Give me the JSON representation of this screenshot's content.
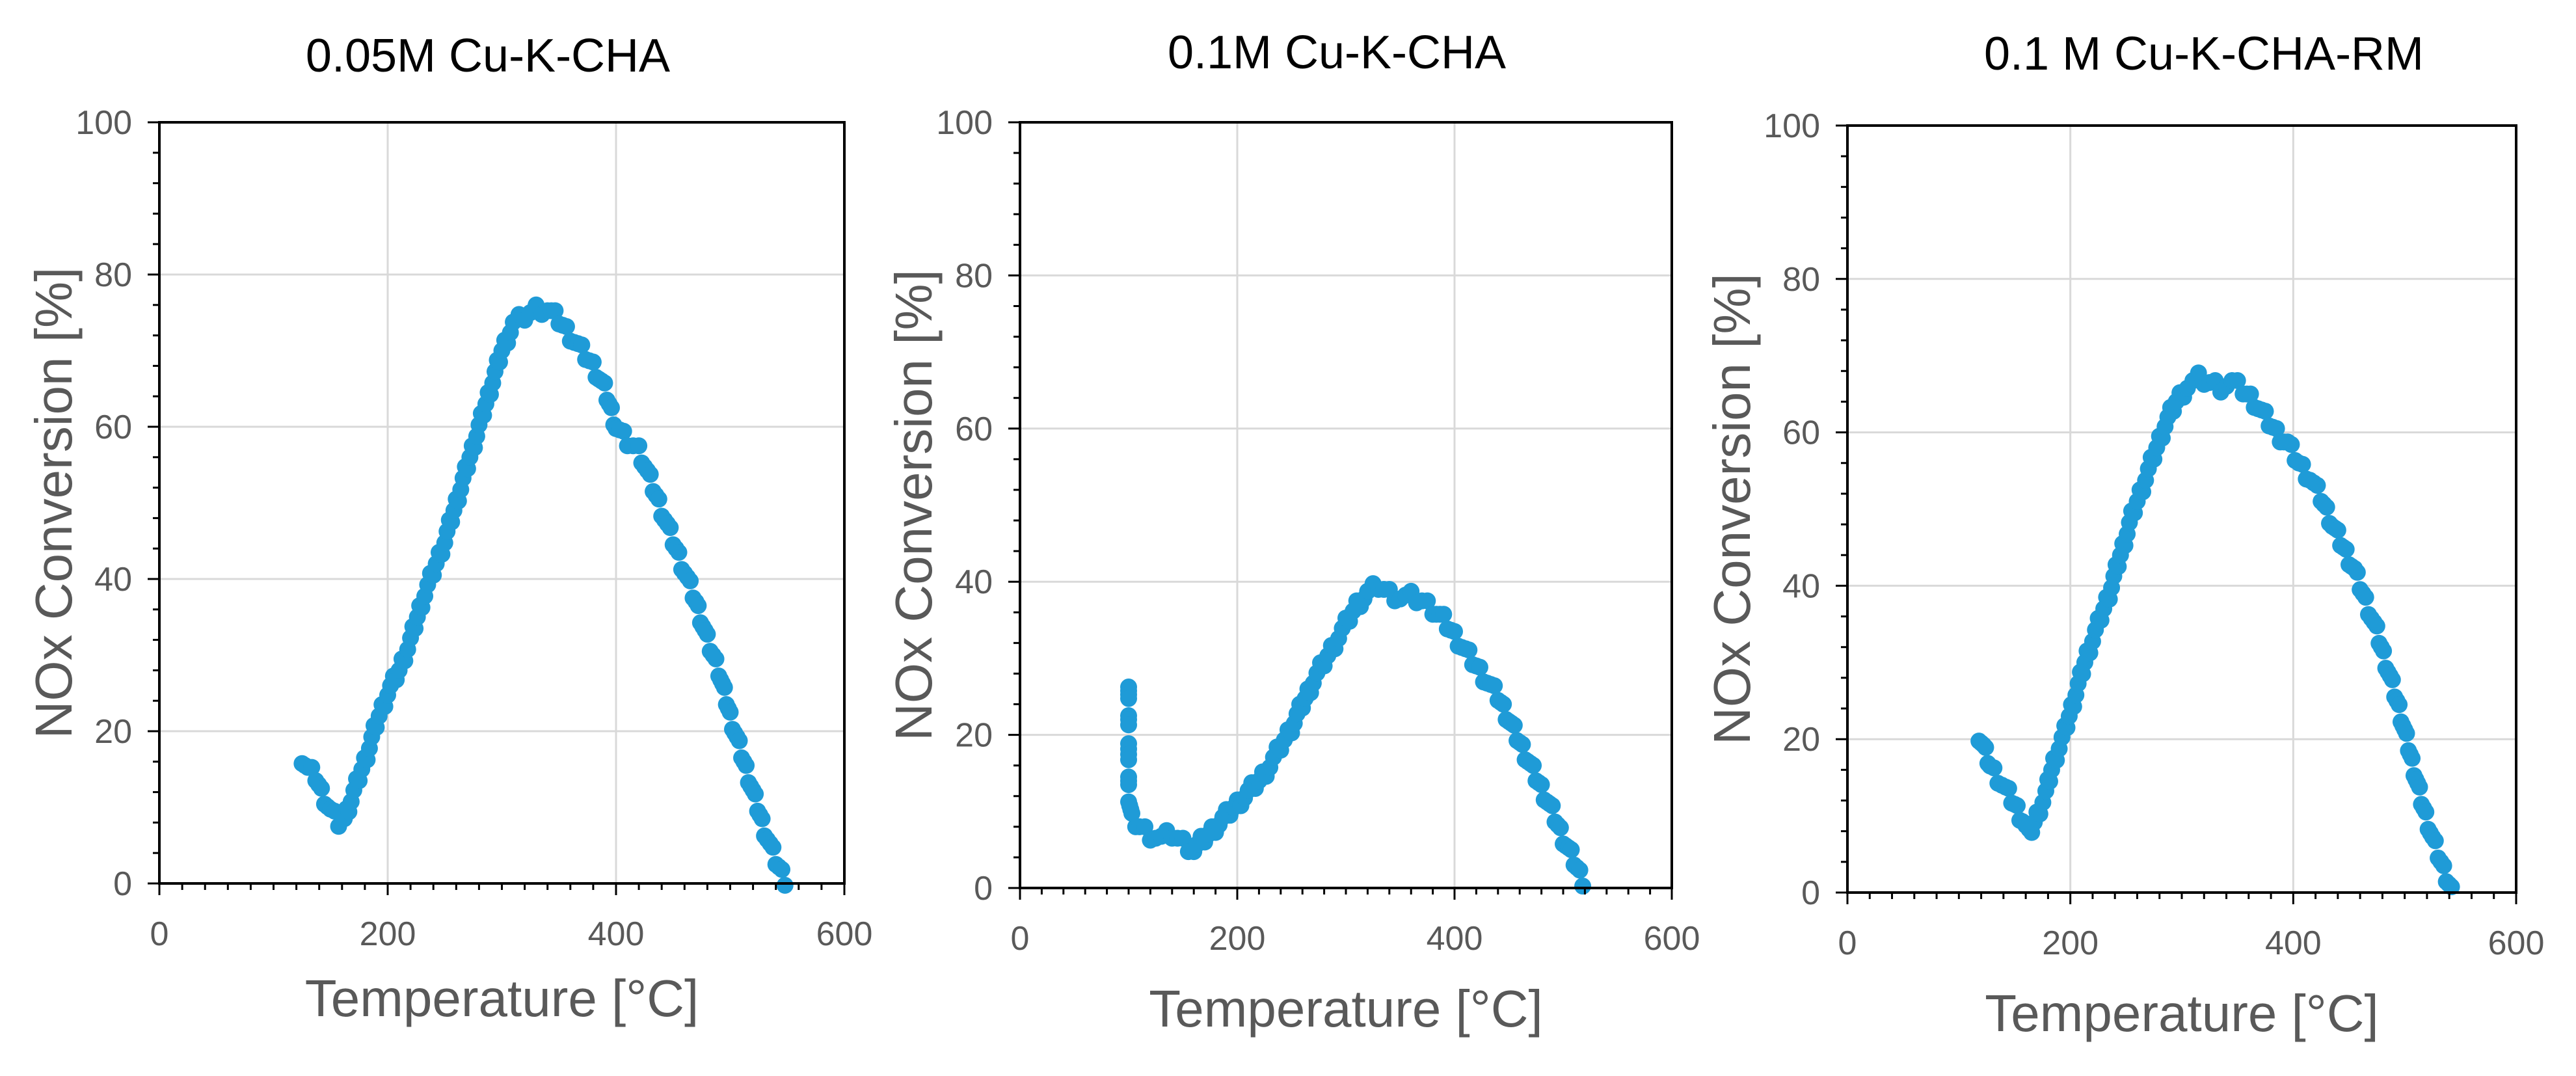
{
  "chart_data": [
    {
      "type": "scatter",
      "title": "0.05M Cu-K-CHA",
      "xlabel": "Temperature [°C]",
      "ylabel": "NOx Conversion [%]",
      "xlim": [
        0,
        600
      ],
      "ylim": [
        0,
        100
      ],
      "xticks": [
        0,
        200,
        400,
        600
      ],
      "yticks": [
        0,
        20,
        40,
        60,
        80,
        100
      ],
      "xtick_labels": [
        "0",
        "200",
        "400",
        "600"
      ],
      "ytick_labels": [
        "0",
        "20",
        "40",
        "60",
        "80",
        "100"
      ],
      "color": "#1f9bd7",
      "curve": [
        [
          125,
          16.5
        ],
        [
          130,
          15
        ],
        [
          137,
          14
        ],
        [
          142,
          12
        ],
        [
          150,
          9.5
        ],
        [
          157,
          8
        ],
        [
          162,
          8.5
        ],
        [
          168,
          11
        ],
        [
          175,
          14
        ],
        [
          182,
          17
        ],
        [
          190,
          21
        ],
        [
          200,
          25
        ],
        [
          210,
          28
        ],
        [
          220,
          32
        ],
        [
          230,
          37
        ],
        [
          240,
          41
        ],
        [
          250,
          45
        ],
        [
          260,
          50
        ],
        [
          270,
          55
        ],
        [
          280,
          60
        ],
        [
          290,
          65
        ],
        [
          300,
          70
        ],
        [
          310,
          73.5
        ],
        [
          320,
          74.5
        ],
        [
          330,
          75.5
        ],
        [
          340,
          75.5
        ],
        [
          350,
          74
        ],
        [
          360,
          72
        ],
        [
          370,
          70
        ],
        [
          380,
          68
        ],
        [
          390,
          65
        ],
        [
          400,
          60
        ],
        [
          410,
          58
        ],
        [
          420,
          57
        ],
        [
          430,
          53
        ],
        [
          440,
          49
        ],
        [
          450,
          45
        ],
        [
          460,
          41
        ],
        [
          470,
          37
        ],
        [
          480,
          32
        ],
        [
          490,
          28
        ],
        [
          500,
          22
        ],
        [
          510,
          17
        ],
        [
          520,
          12
        ],
        [
          530,
          7
        ],
        [
          540,
          3
        ],
        [
          548,
          0.5
        ]
      ]
    },
    {
      "type": "scatter",
      "title": "0.1M Cu-K-CHA",
      "xlabel": "Temperature [°C]",
      "ylabel": "NOx Conversion [%]",
      "xlim": [
        0,
        600
      ],
      "ylim": [
        0,
        100
      ],
      "xticks": [
        0,
        200,
        400,
        600
      ],
      "yticks": [
        0,
        20,
        40,
        60,
        80,
        100
      ],
      "xtick_labels": [
        "0",
        "200",
        "400",
        "600"
      ],
      "ytick_labels": [
        "0",
        "20",
        "40",
        "60",
        "80",
        "100"
      ],
      "color": "#1f9bd7",
      "curve": [
        [
          100,
          27
        ],
        [
          100,
          22
        ],
        [
          100,
          16
        ],
        [
          100,
          12
        ],
        [
          103,
          9
        ],
        [
          110,
          8
        ],
        [
          120,
          7
        ],
        [
          130,
          6.5
        ],
        [
          140,
          7
        ],
        [
          150,
          6
        ],
        [
          160,
          5
        ],
        [
          170,
          6.5
        ],
        [
          180,
          8
        ],
        [
          190,
          9.5
        ],
        [
          200,
          11
        ],
        [
          210,
          12.5
        ],
        [
          220,
          14
        ],
        [
          230,
          16
        ],
        [
          240,
          18.5
        ],
        [
          250,
          21
        ],
        [
          260,
          24
        ],
        [
          270,
          27
        ],
        [
          280,
          29.5
        ],
        [
          290,
          32
        ],
        [
          300,
          34.5
        ],
        [
          310,
          37
        ],
        [
          320,
          38.5
        ],
        [
          330,
          39.5
        ],
        [
          340,
          38.5
        ],
        [
          350,
          38
        ],
        [
          360,
          38
        ],
        [
          370,
          37.5
        ],
        [
          380,
          36.5
        ],
        [
          390,
          35
        ],
        [
          400,
          33
        ],
        [
          410,
          31
        ],
        [
          420,
          29
        ],
        [
          430,
          27
        ],
        [
          440,
          25
        ],
        [
          450,
          22
        ],
        [
          460,
          19
        ],
        [
          470,
          16
        ],
        [
          480,
          13
        ],
        [
          490,
          10
        ],
        [
          500,
          6.5
        ],
        [
          510,
          3.5
        ],
        [
          518,
          1
        ]
      ]
    },
    {
      "type": "scatter",
      "title": "0.1 M Cu-K-CHA-RM",
      "xlabel": "Temperature [°C]",
      "ylabel": "NOx Conversion [%]",
      "xlim": [
        0,
        600
      ],
      "ylim": [
        0,
        100
      ],
      "xticks": [
        0,
        200,
        400,
        600
      ],
      "yticks": [
        0,
        20,
        40,
        60,
        80,
        100
      ],
      "xtick_labels": [
        "0",
        "200",
        "400",
        "600"
      ],
      "ytick_labels": [
        "0",
        "20",
        "40",
        "60",
        "80",
        "100"
      ],
      "color": "#1f9bd7",
      "curve": [
        [
          118,
          20.5
        ],
        [
          122,
          19
        ],
        [
          128,
          16.5
        ],
        [
          135,
          15
        ],
        [
          142,
          13.5
        ],
        [
          150,
          11.5
        ],
        [
          157,
          9.5
        ],
        [
          163,
          7.5
        ],
        [
          170,
          10
        ],
        [
          178,
          13
        ],
        [
          185,
          17
        ],
        [
          195,
          21
        ],
        [
          205,
          26
        ],
        [
          215,
          31
        ],
        [
          225,
          35
        ],
        [
          235,
          39
        ],
        [
          245,
          44
        ],
        [
          255,
          49
        ],
        [
          265,
          53
        ],
        [
          275,
          57
        ],
        [
          285,
          61
        ],
        [
          295,
          64
        ],
        [
          305,
          66
        ],
        [
          315,
          67
        ],
        [
          325,
          66.5
        ],
        [
          335,
          66
        ],
        [
          345,
          66.5
        ],
        [
          355,
          65.5
        ],
        [
          365,
          64
        ],
        [
          375,
          62
        ],
        [
          385,
          60
        ],
        [
          395,
          58.5
        ],
        [
          405,
          56
        ],
        [
          415,
          54
        ],
        [
          425,
          51.5
        ],
        [
          435,
          48
        ],
        [
          445,
          45
        ],
        [
          455,
          42
        ],
        [
          465,
          38
        ],
        [
          475,
          34
        ],
        [
          485,
          29
        ],
        [
          495,
          24
        ],
        [
          505,
          18
        ],
        [
          515,
          12
        ],
        [
          525,
          7
        ],
        [
          535,
          3
        ],
        [
          542,
          0.5
        ]
      ]
    }
  ]
}
